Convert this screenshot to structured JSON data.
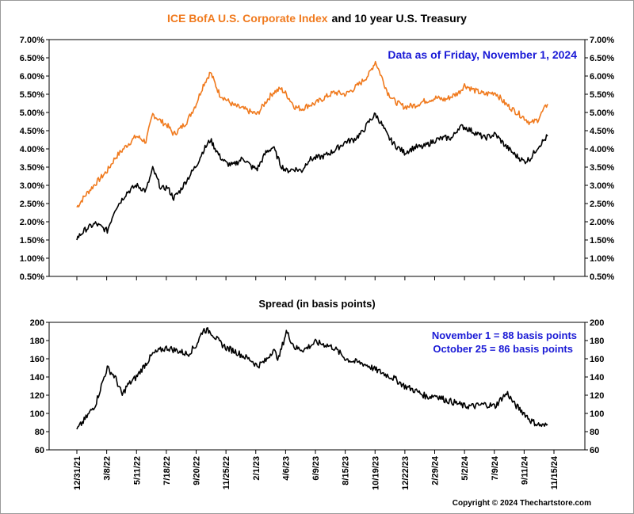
{
  "chart_data": [
    {
      "type": "line",
      "title_part1": "ICE BofA U.S. Corporate Index",
      "title_part2": "and 10 year U.S. Treasury",
      "annotation": "Data as of Friday, November 1, 2024",
      "ylim": [
        0.5,
        7.0
      ],
      "yticks": [
        "0.50%",
        "1.00%",
        "1.50%",
        "2.00%",
        "2.50%",
        "3.00%",
        "3.50%",
        "4.00%",
        "4.50%",
        "5.00%",
        "5.50%",
        "6.00%",
        "6.50%",
        "7.00%"
      ],
      "grid": false,
      "colors": {
        "corporate": "#F07A1E",
        "treasury": "#000000"
      },
      "series": [
        {
          "name": "ICE BofA U.S. Corporate Index",
          "color": "#F07A1E",
          "x": [
            "2021-12-31",
            "2022-01-20",
            "2022-02-10",
            "2022-03-08",
            "2022-03-25",
            "2022-04-20",
            "2022-05-11",
            "2022-06-01",
            "2022-06-16",
            "2022-07-05",
            "2022-07-18",
            "2022-08-01",
            "2022-08-15",
            "2022-08-30",
            "2022-09-20",
            "2022-10-05",
            "2022-10-21",
            "2022-11-10",
            "2022-11-25",
            "2022-12-10",
            "2023-01-01",
            "2023-01-20",
            "2023-02-01",
            "2023-02-20",
            "2023-03-08",
            "2023-03-25",
            "2023-04-06",
            "2023-04-25",
            "2023-05-10",
            "2023-05-25",
            "2023-06-09",
            "2023-06-28",
            "2023-07-20",
            "2023-08-15",
            "2023-09-01",
            "2023-09-20",
            "2023-10-05",
            "2023-10-19",
            "2023-11-01",
            "2023-11-15",
            "2023-12-01",
            "2023-12-22",
            "2024-01-15",
            "2024-02-01",
            "2024-02-29",
            "2024-03-20",
            "2024-04-05",
            "2024-04-20",
            "2024-05-02",
            "2024-05-25",
            "2024-06-15",
            "2024-07-09",
            "2024-07-30",
            "2024-08-20",
            "2024-09-11",
            "2024-09-25",
            "2024-10-10",
            "2024-10-25",
            "2024-11-01"
          ],
          "values": [
            2.4,
            2.75,
            3.05,
            3.4,
            3.75,
            4.1,
            4.35,
            4.2,
            4.95,
            4.75,
            4.65,
            4.4,
            4.55,
            4.75,
            5.25,
            5.75,
            6.1,
            5.5,
            5.35,
            5.2,
            5.1,
            5.0,
            4.95,
            5.3,
            5.55,
            5.65,
            5.5,
            5.15,
            5.1,
            5.2,
            5.25,
            5.4,
            5.55,
            5.5,
            5.65,
            5.85,
            6.05,
            6.4,
            6.0,
            5.55,
            5.3,
            5.15,
            5.2,
            5.3,
            5.4,
            5.35,
            5.45,
            5.55,
            5.75,
            5.6,
            5.5,
            5.55,
            5.25,
            5.05,
            4.85,
            4.7,
            4.8,
            5.1,
            5.23
          ]
        },
        {
          "name": "10 year U.S. Treasury",
          "color": "#000000",
          "x": [
            "2021-12-31",
            "2022-01-20",
            "2022-02-10",
            "2022-03-08",
            "2022-03-25",
            "2022-04-20",
            "2022-05-11",
            "2022-06-01",
            "2022-06-16",
            "2022-07-05",
            "2022-07-18",
            "2022-08-01",
            "2022-08-15",
            "2022-08-30",
            "2022-09-20",
            "2022-10-05",
            "2022-10-21",
            "2022-11-10",
            "2022-11-25",
            "2022-12-10",
            "2023-01-01",
            "2023-01-20",
            "2023-02-01",
            "2023-02-20",
            "2023-03-08",
            "2023-03-25",
            "2023-04-06",
            "2023-04-25",
            "2023-05-10",
            "2023-05-25",
            "2023-06-09",
            "2023-06-28",
            "2023-07-20",
            "2023-08-15",
            "2023-09-01",
            "2023-09-20",
            "2023-10-05",
            "2023-10-19",
            "2023-11-01",
            "2023-11-15",
            "2023-12-01",
            "2023-12-22",
            "2024-01-15",
            "2024-02-01",
            "2024-02-29",
            "2024-03-20",
            "2024-04-05",
            "2024-04-20",
            "2024-05-02",
            "2024-05-25",
            "2024-06-15",
            "2024-07-09",
            "2024-07-30",
            "2024-08-20",
            "2024-09-11",
            "2024-09-25",
            "2024-10-10",
            "2024-10-25",
            "2024-11-01"
          ],
          "values": [
            1.55,
            1.8,
            1.95,
            1.75,
            2.35,
            2.8,
            3.0,
            2.85,
            3.45,
            2.9,
            2.95,
            2.65,
            2.85,
            3.15,
            3.55,
            3.95,
            4.25,
            3.8,
            3.6,
            3.55,
            3.75,
            3.5,
            3.45,
            3.9,
            4.05,
            3.55,
            3.4,
            3.45,
            3.4,
            3.7,
            3.75,
            3.8,
            3.95,
            4.2,
            4.25,
            4.45,
            4.75,
            4.95,
            4.7,
            4.35,
            4.1,
            3.9,
            4.05,
            4.05,
            4.25,
            4.3,
            4.3,
            4.6,
            4.6,
            4.45,
            4.3,
            4.4,
            4.1,
            3.85,
            3.65,
            3.75,
            4.05,
            4.25,
            4.35
          ]
        }
      ]
    },
    {
      "type": "line",
      "title": "Spread (in basis points)",
      "annotation_lines": [
        "November 1 = 88 basis points",
        "October 25 = 86 basis points"
      ],
      "ylim": [
        60,
        200
      ],
      "yticks": [
        "60",
        "80",
        "100",
        "120",
        "140",
        "160",
        "180",
        "200"
      ],
      "grid": false,
      "x_tick_labels": [
        "12/31/21",
        "3/8/22",
        "5/11/22",
        "7/18/22",
        "9/20/22",
        "11/25/22",
        "2/1/23",
        "4/6/23",
        "6/9/23",
        "8/15/23",
        "10/19/23",
        "12/22/23",
        "2/29/24",
        "5/2/24",
        "7/9/24",
        "9/11/24",
        "11/15/24"
      ],
      "series": [
        {
          "name": "Spread",
          "color": "#000000",
          "x": [
            "2021-12-31",
            "2022-01-20",
            "2022-02-10",
            "2022-03-01",
            "2022-03-08",
            "2022-03-25",
            "2022-04-10",
            "2022-04-20",
            "2022-05-11",
            "2022-05-25",
            "2022-06-16",
            "2022-07-05",
            "2022-07-18",
            "2022-08-15",
            "2022-09-01",
            "2022-09-20",
            "2022-10-05",
            "2022-10-21",
            "2022-11-10",
            "2022-11-25",
            "2022-12-15",
            "2023-01-05",
            "2023-01-20",
            "2023-02-01",
            "2023-02-20",
            "2023-03-08",
            "2023-03-20",
            "2023-04-06",
            "2023-04-25",
            "2023-05-15",
            "2023-06-09",
            "2023-07-05",
            "2023-07-20",
            "2023-08-15",
            "2023-09-01",
            "2023-09-20",
            "2023-10-05",
            "2023-10-19",
            "2023-11-10",
            "2023-12-01",
            "2023-12-22",
            "2024-01-15",
            "2024-02-10",
            "2024-02-29",
            "2024-03-20",
            "2024-04-10",
            "2024-05-02",
            "2024-05-25",
            "2024-06-15",
            "2024-07-09",
            "2024-07-25",
            "2024-08-05",
            "2024-08-20",
            "2024-09-11",
            "2024-09-25",
            "2024-10-10",
            "2024-10-25",
            "2024-11-01"
          ],
          "values": [
            82,
            95,
            110,
            140,
            150,
            140,
            120,
            130,
            140,
            150,
            165,
            170,
            172,
            168,
            165,
            175,
            192,
            190,
            178,
            172,
            168,
            162,
            158,
            152,
            158,
            170,
            160,
            190,
            172,
            170,
            178,
            175,
            172,
            160,
            157,
            155,
            152,
            148,
            143,
            138,
            130,
            125,
            118,
            120,
            115,
            112,
            108,
            108,
            110,
            108,
            118,
            122,
            110,
            100,
            92,
            88,
            86,
            88
          ]
        }
      ]
    }
  ],
  "footer": {
    "copyright": "Copyright © 2024 Thechartstore.com"
  }
}
